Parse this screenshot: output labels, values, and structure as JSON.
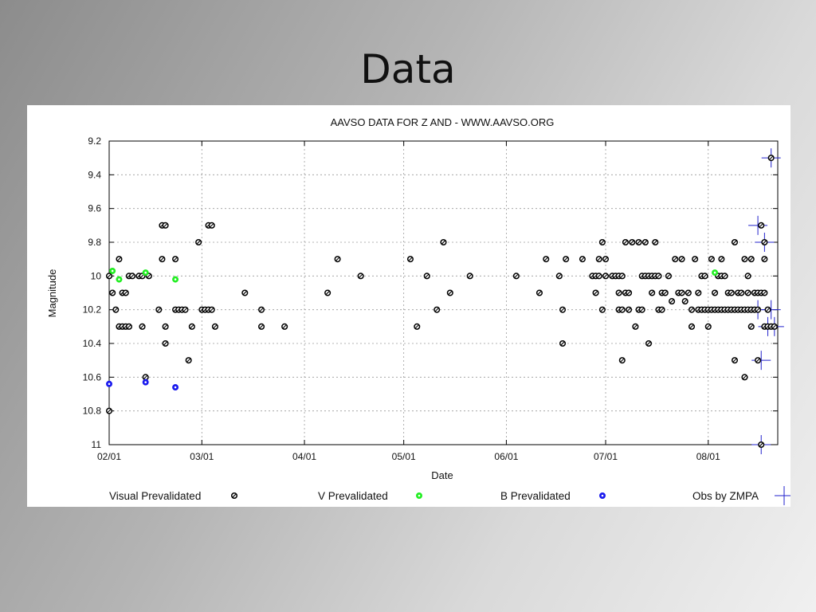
{
  "slide": {
    "title": "Data"
  },
  "colors": {
    "visual": "#000000",
    "v": "#22ee22",
    "b": "#1a1aee",
    "zmpa": "#2222cc",
    "grid": "#9a9a9a"
  },
  "chart_data": {
    "type": "scatter",
    "title": "AAVSO DATA FOR Z AND - WWW.AAVSO.ORG",
    "xlabel": "Date",
    "ylabel": "Magnitude",
    "x_unit": "date",
    "ylim": [
      11,
      9.2
    ],
    "y_inverted": true,
    "yticks": [
      9.2,
      9.4,
      9.6,
      9.8,
      10,
      10.2,
      10.4,
      10.6,
      10.8,
      11
    ],
    "ytick_labels": [
      "9.2",
      "9.4",
      "9.6",
      "9.8",
      "10",
      "10.2",
      "10.4",
      "10.6",
      "10.8",
      "11"
    ],
    "xlim": [
      "02/01",
      "08/22"
    ],
    "xticks": [
      "02/01",
      "03/01",
      "04/01",
      "05/01",
      "06/01",
      "07/01",
      "08/01"
    ],
    "xtick_labels": [
      "02/01",
      "03/01",
      "04/01",
      "05/01",
      "06/01",
      "07/01",
      "08/01"
    ],
    "grid": true,
    "legend": {
      "placement": "bottom"
    },
    "series": [
      {
        "name": "Visual Prevalidated",
        "marker": "open-circle",
        "points": [
          [
            "02/01",
            10.0
          ],
          [
            "02/01",
            10.8
          ],
          [
            "02/02",
            10.1
          ],
          [
            "02/03",
            10.2
          ],
          [
            "02/04",
            9.9
          ],
          [
            "02/04",
            10.3
          ],
          [
            "02/05",
            10.1
          ],
          [
            "02/05",
            10.3
          ],
          [
            "02/06",
            10.1
          ],
          [
            "02/06",
            10.3
          ],
          [
            "02/07",
            10.0
          ],
          [
            "02/07",
            10.3
          ],
          [
            "02/08",
            10.0
          ],
          [
            "02/10",
            10.0
          ],
          [
            "02/11",
            10.0
          ],
          [
            "02/11",
            10.3
          ],
          [
            "02/12",
            10.6
          ],
          [
            "02/13",
            10.0
          ],
          [
            "02/16",
            10.2
          ],
          [
            "02/17",
            9.7
          ],
          [
            "02/17",
            9.9
          ],
          [
            "02/18",
            9.7
          ],
          [
            "02/18",
            10.3
          ],
          [
            "02/18",
            10.4
          ],
          [
            "02/21",
            9.9
          ],
          [
            "02/21",
            10.2
          ],
          [
            "02/22",
            10.2
          ],
          [
            "02/23",
            10.2
          ],
          [
            "02/24",
            10.2
          ],
          [
            "02/25",
            10.5
          ],
          [
            "02/26",
            10.3
          ],
          [
            "02/28",
            9.8
          ],
          [
            "03/01",
            10.2
          ],
          [
            "03/02",
            10.2
          ],
          [
            "03/03",
            10.2
          ],
          [
            "03/03",
            9.7
          ],
          [
            "03/04",
            9.7
          ],
          [
            "03/04",
            10.2
          ],
          [
            "03/05",
            10.3
          ],
          [
            "03/14",
            10.1
          ],
          [
            "03/19",
            10.2
          ],
          [
            "03/19",
            10.3
          ],
          [
            "03/26",
            10.3
          ],
          [
            "04/08",
            10.1
          ],
          [
            "04/11",
            9.9
          ],
          [
            "04/18",
            10.0
          ],
          [
            "05/03",
            9.9
          ],
          [
            "05/05",
            10.3
          ],
          [
            "05/08",
            10.0
          ],
          [
            "05/11",
            10.2
          ],
          [
            "05/13",
            9.8
          ],
          [
            "05/15",
            10.1
          ],
          [
            "05/21",
            10.0
          ],
          [
            "06/04",
            10.0
          ],
          [
            "06/11",
            10.1
          ],
          [
            "06/13",
            9.9
          ],
          [
            "06/17",
            10.0
          ],
          [
            "06/18",
            10.2
          ],
          [
            "06/18",
            10.4
          ],
          [
            "06/19",
            9.9
          ],
          [
            "06/24",
            9.9
          ],
          [
            "06/27",
            10.0
          ],
          [
            "06/28",
            10.1
          ],
          [
            "06/28",
            10.0
          ],
          [
            "06/29",
            9.9
          ],
          [
            "06/29",
            10.0
          ],
          [
            "06/30",
            10.2
          ],
          [
            "06/30",
            9.8
          ],
          [
            "07/01",
            9.9
          ],
          [
            "07/01",
            10.0
          ],
          [
            "07/03",
            10.0
          ],
          [
            "07/04",
            10.0
          ],
          [
            "07/05",
            10.0
          ],
          [
            "07/05",
            10.2
          ],
          [
            "07/05",
            10.1
          ],
          [
            "07/06",
            10.5
          ],
          [
            "07/06",
            10.0
          ],
          [
            "07/06",
            10.2
          ],
          [
            "07/07",
            10.1
          ],
          [
            "07/07",
            9.8
          ],
          [
            "07/08",
            10.1
          ],
          [
            "07/08",
            10.2
          ],
          [
            "07/09",
            9.8
          ],
          [
            "07/10",
            10.3
          ],
          [
            "07/11",
            9.8
          ],
          [
            "07/11",
            10.2
          ],
          [
            "07/12",
            10.0
          ],
          [
            "07/12",
            10.2
          ],
          [
            "07/13",
            9.8
          ],
          [
            "07/13",
            10.0
          ],
          [
            "07/14",
            10.0
          ],
          [
            "07/14",
            10.4
          ],
          [
            "07/15",
            10.0
          ],
          [
            "07/15",
            10.1
          ],
          [
            "07/16",
            9.8
          ],
          [
            "07/16",
            10.0
          ],
          [
            "07/17",
            10.0
          ],
          [
            "07/17",
            10.2
          ],
          [
            "07/18",
            10.1
          ],
          [
            "07/18",
            10.2
          ],
          [
            "07/19",
            10.1
          ],
          [
            "07/20",
            10.0
          ],
          [
            "07/21",
            10.15
          ],
          [
            "07/22",
            9.9
          ],
          [
            "07/23",
            10.1
          ],
          [
            "07/24",
            9.9
          ],
          [
            "07/24",
            10.1
          ],
          [
            "07/25",
            10.15
          ],
          [
            "07/26",
            10.1
          ],
          [
            "07/27",
            10.2
          ],
          [
            "07/27",
            10.3
          ],
          [
            "07/28",
            9.9
          ],
          [
            "07/29",
            10.1
          ],
          [
            "07/29",
            10.2
          ],
          [
            "07/30",
            10.0
          ],
          [
            "07/30",
            10.2
          ],
          [
            "07/31",
            10.2
          ],
          [
            "07/31",
            10.0
          ],
          [
            "08/01",
            10.3
          ],
          [
            "08/01",
            10.2
          ],
          [
            "08/02",
            9.9
          ],
          [
            "08/02",
            10.2
          ],
          [
            "08/03",
            10.1
          ],
          [
            "08/03",
            10.2
          ],
          [
            "08/04",
            10.2
          ],
          [
            "08/04",
            10.0
          ],
          [
            "08/05",
            9.9
          ],
          [
            "08/05",
            10.2
          ],
          [
            "08/05",
            10.0
          ],
          [
            "08/06",
            10.2
          ],
          [
            "08/06",
            10.0
          ],
          [
            "08/07",
            10.2
          ],
          [
            "08/07",
            10.1
          ],
          [
            "08/08",
            10.2
          ],
          [
            "08/08",
            10.1
          ],
          [
            "08/09",
            9.8
          ],
          [
            "08/09",
            10.2
          ],
          [
            "08/09",
            10.5
          ],
          [
            "08/10",
            10.1
          ],
          [
            "08/10",
            10.2
          ],
          [
            "08/11",
            10.1
          ],
          [
            "08/11",
            10.2
          ],
          [
            "08/12",
            10.6
          ],
          [
            "08/12",
            9.9
          ],
          [
            "08/12",
            10.2
          ],
          [
            "08/13",
            10.1
          ],
          [
            "08/13",
            10.2
          ],
          [
            "08/13",
            10.0
          ],
          [
            "08/14",
            9.9
          ],
          [
            "08/14",
            10.2
          ],
          [
            "08/14",
            10.3
          ],
          [
            "08/15",
            10.1
          ],
          [
            "08/15",
            10.2
          ],
          [
            "08/16",
            10.1
          ],
          [
            "08/16",
            10.5
          ],
          [
            "08/16",
            10.2
          ],
          [
            "08/17",
            9.7
          ],
          [
            "08/17",
            10.1
          ],
          [
            "08/17",
            11.0
          ],
          [
            "08/18",
            9.9
          ],
          [
            "08/18",
            10.3
          ],
          [
            "08/18",
            10.1
          ],
          [
            "08/18",
            9.8
          ],
          [
            "08/19",
            10.2
          ],
          [
            "08/19",
            10.3
          ],
          [
            "08/20",
            9.3
          ],
          [
            "08/20",
            10.3
          ],
          [
            "08/21",
            10.3
          ]
        ]
      },
      {
        "name": "V Prevalidated",
        "marker": "filled-circle",
        "points": [
          [
            "02/02",
            9.97
          ],
          [
            "02/04",
            10.02
          ],
          [
            "02/12",
            9.98
          ],
          [
            "02/21",
            10.02
          ],
          [
            "08/03",
            9.98
          ]
        ]
      },
      {
        "name": "B Prevalidated",
        "marker": "filled-circle",
        "points": [
          [
            "02/01",
            10.64
          ],
          [
            "02/12",
            10.63
          ],
          [
            "02/21",
            10.66
          ]
        ]
      },
      {
        "name": "Obs by ZMPA",
        "marker": "cross",
        "points": [
          [
            "08/16",
            9.7
          ],
          [
            "08/17",
            10.5
          ],
          [
            "08/16",
            10.2
          ],
          [
            "08/18",
            9.8
          ],
          [
            "08/19",
            10.3
          ],
          [
            "08/20",
            9.3
          ],
          [
            "08/20",
            10.2
          ],
          [
            "08/21",
            10.3
          ],
          [
            "08/17",
            11.0
          ]
        ]
      }
    ]
  }
}
